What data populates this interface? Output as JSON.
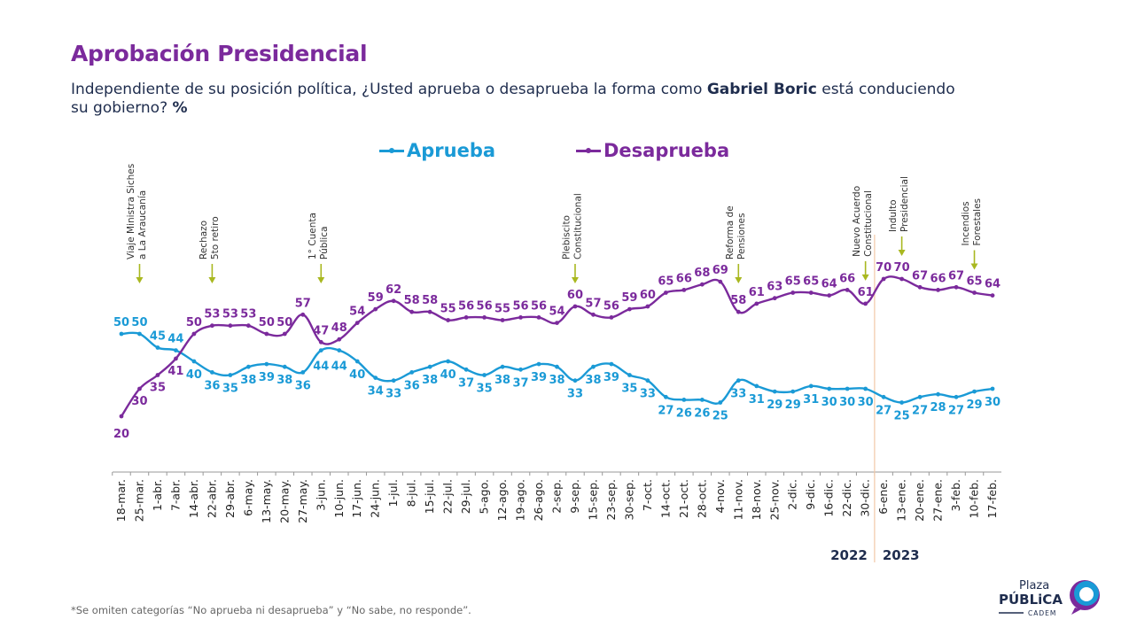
{
  "header": {
    "title": "Aprobación Presidencial",
    "subtitle_pre": "Independiente de su posición política, ¿Usted aprueba o desaprueba la forma como ",
    "subtitle_bold": "Gabriel Boric",
    "subtitle_mid": " está conduciendo su gobierno? ",
    "subtitle_unit": "%"
  },
  "footnote": "*Se omiten categorías “No aprueba ni desaprueba” y “No sabe, no responde”.",
  "logo": {
    "line1": "Plaza",
    "line2": "PÚBLiCA",
    "line3": "CADEM"
  },
  "chart_data": {
    "type": "line",
    "title": "Aprobación Presidencial",
    "xlabel": "",
    "ylabel": "%",
    "ylim": [
      20,
      70
    ],
    "grid": false,
    "legend": "top-center",
    "categories": [
      "18-mar.",
      "25-mar.",
      "1-abr.",
      "7-abr.",
      "14-abr.",
      "22-abr.",
      "29-abr.",
      "6-may.",
      "13-may.",
      "20-may.",
      "27-may.",
      "3-jun.",
      "10-jun.",
      "17-jun.",
      "24-jun.",
      "1-jul.",
      "8-jul.",
      "15-jul.",
      "22-jul.",
      "29-jul.",
      "5-ago.",
      "12-ago.",
      "19-ago.",
      "26-ago.",
      "2-sep.",
      "9-sep.",
      "15-sep.",
      "23-sep.",
      "30-sep.",
      "7-oct.",
      "14-oct.",
      "21-oct.",
      "28-oct.",
      "4-nov.",
      "11-nov.",
      "18-nov.",
      "25-nov.",
      "2-dic.",
      "9-dic.",
      "16-dic.",
      "22-dic.",
      "30-dic.",
      "6-ene.",
      "13-ene.",
      "20-ene.",
      "27-ene.",
      "3-feb.",
      "10-feb.",
      "17-feb."
    ],
    "series": [
      {
        "name": "Aprueba",
        "color": "#1a9ad6",
        "values": [
          50,
          50,
          45,
          44,
          40,
          36,
          35,
          38,
          39,
          38,
          36,
          44,
          44,
          40,
          34,
          33,
          36,
          38,
          40,
          37,
          35,
          38,
          37,
          39,
          38,
          33,
          38,
          39,
          35,
          33,
          27,
          26,
          26,
          25,
          33,
          31,
          29,
          29,
          31,
          30,
          30,
          30,
          27,
          25,
          27,
          28,
          27,
          29,
          30
        ]
      },
      {
        "name": "Desaprueba",
        "color": "#7b2a9c",
        "values": [
          20,
          30,
          35,
          41,
          50,
          53,
          53,
          53,
          50,
          50,
          57,
          47,
          48,
          54,
          59,
          62,
          58,
          58,
          55,
          56,
          56,
          55,
          56,
          56,
          54,
          60,
          57,
          56,
          59,
          60,
          65,
          66,
          68,
          69,
          58,
          61,
          63,
          65,
          65,
          64,
          66,
          61,
          70,
          70,
          67,
          66,
          67,
          65,
          64
        ]
      }
    ],
    "year_labels": [
      {
        "label": "2022",
        "side": "before-divider"
      },
      {
        "label": "2023",
        "side": "after-divider"
      }
    ],
    "year_divider_after": "30-dic.",
    "annotations": [
      {
        "at": "25-mar.",
        "lines": [
          "Viaje Ministra Siches",
          "a La Araucanía"
        ]
      },
      {
        "at": "22-abr.",
        "lines": [
          "Rechazo",
          "5to retiro"
        ]
      },
      {
        "at": "3-jun.",
        "lines": [
          "1° Cuenta",
          "Pública"
        ]
      },
      {
        "at": "9-sep.",
        "lines": [
          "Plebiscito",
          "Constitucional"
        ]
      },
      {
        "at": "11-nov.",
        "lines": [
          "Reforma de",
          "Pensiones"
        ]
      },
      {
        "at": "30-dic.",
        "lines": [
          "Nuevo Acuerdo",
          "Constitucional"
        ]
      },
      {
        "at": "13-ene.",
        "lines": [
          "Indulto",
          "Presidencial"
        ]
      },
      {
        "at": "10-feb.",
        "lines": [
          "Incendios",
          "Forestales"
        ]
      }
    ],
    "annotation_arrow_color": "#a9b820",
    "divider_color": "#f2c9a8"
  }
}
